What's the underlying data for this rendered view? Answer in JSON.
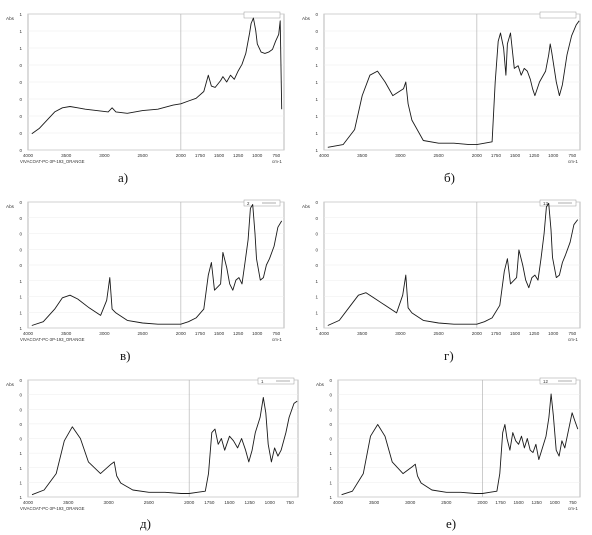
{
  "chart_data": [
    {
      "type": "line",
      "panel_label": "а)",
      "ylabel": "Abs",
      "x_unit": "cm-1",
      "file_label": "VIVACOAT-PC-3P-193_ORANGE",
      "legend": "",
      "xlim": [
        4000,
        650
      ],
      "ylim": [
        0,
        1
      ],
      "xticks": [
        4000,
        3500,
        3000,
        2500,
        2000,
        1750,
        1500,
        1250,
        1000,
        750
      ],
      "yticks": [
        "0",
        "0",
        "0",
        "0",
        "0",
        "0",
        "1",
        "1",
        "1"
      ],
      "x": [
        3950,
        3850,
        3750,
        3650,
        3550,
        3450,
        3350,
        3250,
        3100,
        2950,
        2900,
        2850,
        2700,
        2500,
        2300,
        2100,
        2000,
        1900,
        1800,
        1700,
        1640,
        1600,
        1550,
        1480,
        1450,
        1400,
        1350,
        1300,
        1250,
        1200,
        1150,
        1100,
        1080,
        1050,
        1020,
        1000,
        950,
        900,
        850,
        800,
        760,
        720,
        700,
        680
      ],
      "y": [
        0.12,
        0.16,
        0.22,
        0.28,
        0.31,
        0.32,
        0.31,
        0.3,
        0.29,
        0.28,
        0.31,
        0.28,
        0.27,
        0.29,
        0.3,
        0.33,
        0.34,
        0.36,
        0.38,
        0.43,
        0.55,
        0.47,
        0.46,
        0.51,
        0.54,
        0.5,
        0.55,
        0.52,
        0.58,
        0.63,
        0.71,
        0.86,
        0.93,
        0.97,
        0.88,
        0.78,
        0.72,
        0.71,
        0.72,
        0.74,
        0.8,
        0.85,
        0.95,
        0.3
      ]
    },
    {
      "type": "line",
      "panel_label": "б)",
      "ylabel": "Abs",
      "x_unit": "cm-1",
      "file_label": "",
      "legend": "",
      "xlim": [
        4000,
        650
      ],
      "ylim": [
        0,
        1
      ],
      "xticks": [
        4000,
        3500,
        3000,
        2500,
        2000,
        1750,
        1500,
        1250,
        1000,
        750
      ],
      "yticks": [
        "1",
        "1",
        "1",
        "1",
        "1",
        "1",
        "0",
        "0",
        "0"
      ],
      "x": [
        3950,
        3750,
        3600,
        3500,
        3400,
        3300,
        3200,
        3100,
        2960,
        2930,
        2900,
        2850,
        2700,
        2500,
        2300,
        2100,
        2000,
        1900,
        1800,
        1760,
        1720,
        1690,
        1650,
        1620,
        1600,
        1560,
        1510,
        1460,
        1420,
        1380,
        1340,
        1300,
        1270,
        1240,
        1180,
        1100,
        1060,
        1040,
        1020,
        960,
        920,
        880,
        820,
        760,
        700,
        660
      ],
      "y": [
        0.02,
        0.04,
        0.15,
        0.4,
        0.55,
        0.58,
        0.5,
        0.4,
        0.45,
        0.5,
        0.34,
        0.22,
        0.07,
        0.05,
        0.05,
        0.04,
        0.04,
        0.05,
        0.06,
        0.5,
        0.8,
        0.86,
        0.75,
        0.55,
        0.78,
        0.86,
        0.6,
        0.62,
        0.55,
        0.6,
        0.58,
        0.52,
        0.45,
        0.4,
        0.5,
        0.58,
        0.7,
        0.78,
        0.72,
        0.5,
        0.4,
        0.48,
        0.7,
        0.84,
        0.92,
        0.95
      ]
    },
    {
      "type": "line",
      "panel_label": "в)",
      "ylabel": "Abs",
      "x_unit": "cm-1",
      "file_label": "VIVACOAT-PC-3P-193_ORANGE",
      "legend": "2",
      "xlim": [
        4000,
        650
      ],
      "ylim": [
        0,
        1
      ],
      "xticks": [
        4000,
        3500,
        3000,
        2500,
        2000,
        1750,
        1500,
        1250,
        1000,
        750
      ],
      "yticks": [
        "1",
        "1",
        "1",
        "1",
        "0",
        "0",
        "0",
        "0",
        "0"
      ],
      "x": [
        3950,
        3800,
        3650,
        3550,
        3450,
        3350,
        3200,
        3050,
        2970,
        2930,
        2900,
        2850,
        2700,
        2500,
        2300,
        2100,
        2000,
        1900,
        1800,
        1700,
        1640,
        1600,
        1560,
        1480,
        1450,
        1400,
        1360,
        1320,
        1280,
        1240,
        1200,
        1160,
        1120,
        1090,
        1060,
        1030,
        1010,
        960,
        920,
        880,
        840,
        780,
        730,
        680
      ],
      "y": [
        0.02,
        0.05,
        0.15,
        0.24,
        0.26,
        0.23,
        0.16,
        0.1,
        0.22,
        0.4,
        0.15,
        0.12,
        0.06,
        0.04,
        0.03,
        0.03,
        0.03,
        0.05,
        0.08,
        0.15,
        0.42,
        0.52,
        0.3,
        0.35,
        0.6,
        0.48,
        0.35,
        0.3,
        0.38,
        0.4,
        0.35,
        0.52,
        0.7,
        0.95,
        0.98,
        0.75,
        0.55,
        0.38,
        0.4,
        0.5,
        0.55,
        0.65,
        0.8,
        0.85
      ]
    },
    {
      "type": "line",
      "panel_label": "г)",
      "ylabel": "Abs",
      "x_unit": "cm-1",
      "file_label": "",
      "legend": "13",
      "xlim": [
        4000,
        650
      ],
      "ylim": [
        0,
        1
      ],
      "xticks": [
        4000,
        3500,
        3000,
        2500,
        2000,
        1750,
        1500,
        1250,
        1000,
        750
      ],
      "yticks": [
        "1",
        "1",
        "1",
        "1",
        "0",
        "0",
        "0",
        "0",
        "0"
      ],
      "x": [
        3950,
        3800,
        3650,
        3550,
        3450,
        3350,
        3200,
        3050,
        2970,
        2930,
        2900,
        2850,
        2700,
        2500,
        2300,
        2100,
        2000,
        1900,
        1800,
        1700,
        1640,
        1600,
        1560,
        1480,
        1450,
        1400,
        1360,
        1320,
        1280,
        1240,
        1200,
        1160,
        1120,
        1090,
        1060,
        1030,
        1010,
        960,
        920,
        880,
        840,
        780,
        730,
        680
      ],
      "y": [
        0.02,
        0.06,
        0.18,
        0.26,
        0.28,
        0.24,
        0.18,
        0.12,
        0.26,
        0.42,
        0.16,
        0.12,
        0.06,
        0.04,
        0.03,
        0.03,
        0.03,
        0.05,
        0.08,
        0.18,
        0.45,
        0.55,
        0.35,
        0.4,
        0.62,
        0.5,
        0.38,
        0.32,
        0.4,
        0.42,
        0.38,
        0.55,
        0.75,
        0.96,
        0.99,
        0.78,
        0.56,
        0.4,
        0.42,
        0.52,
        0.58,
        0.68,
        0.82,
        0.86
      ]
    },
    {
      "type": "line",
      "panel_label": "д)",
      "ylabel": "Abs",
      "x_unit": "",
      "file_label": "VIVACOAT-PC-3P-193_ORANGE",
      "legend": "1",
      "xlim": [
        4000,
        650
      ],
      "ylim": [
        0,
        1
      ],
      "xticks": [
        4000,
        3500,
        3000,
        2500,
        2000,
        1750,
        1500,
        1250,
        1000,
        750
      ],
      "yticks": [
        "1",
        "1",
        "1",
        "1",
        "0",
        "0",
        "0",
        "0",
        "0"
      ],
      "x": [
        3950,
        3800,
        3650,
        3550,
        3450,
        3350,
        3250,
        3100,
        2970,
        2930,
        2900,
        2850,
        2700,
        2500,
        2300,
        2100,
        2000,
        1900,
        1800,
        1760,
        1720,
        1680,
        1640,
        1600,
        1560,
        1500,
        1450,
        1400,
        1350,
        1300,
        1260,
        1220,
        1180,
        1120,
        1080,
        1050,
        1020,
        980,
        940,
        900,
        860,
        800,
        760,
        700,
        660
      ],
      "y": [
        0.02,
        0.06,
        0.2,
        0.48,
        0.6,
        0.5,
        0.3,
        0.2,
        0.28,
        0.3,
        0.18,
        0.12,
        0.06,
        0.04,
        0.04,
        0.03,
        0.03,
        0.04,
        0.05,
        0.2,
        0.55,
        0.58,
        0.45,
        0.5,
        0.4,
        0.52,
        0.48,
        0.42,
        0.5,
        0.4,
        0.3,
        0.4,
        0.55,
        0.68,
        0.85,
        0.72,
        0.45,
        0.3,
        0.42,
        0.35,
        0.4,
        0.55,
        0.68,
        0.8,
        0.82
      ]
    },
    {
      "type": "line",
      "panel_label": "е)",
      "ylabel": "Abs",
      "x_unit": "cm-1",
      "file_label": "",
      "legend": "12",
      "xlim": [
        4000,
        650
      ],
      "ylim": [
        0,
        1
      ],
      "xticks": [
        4000,
        3500,
        3000,
        2500,
        2000,
        1750,
        1500,
        1250,
        1000,
        750
      ],
      "yticks": [
        "1",
        "1",
        "1",
        "1",
        "0",
        "0",
        "0",
        "0",
        "0"
      ],
      "x": [
        3950,
        3800,
        3650,
        3550,
        3450,
        3350,
        3250,
        3100,
        2970,
        2930,
        2900,
        2850,
        2700,
        2500,
        2300,
        2100,
        2000,
        1900,
        1800,
        1760,
        1720,
        1690,
        1660,
        1620,
        1580,
        1540,
        1500,
        1460,
        1420,
        1380,
        1340,
        1300,
        1260,
        1220,
        1180,
        1120,
        1080,
        1050,
        1020,
        980,
        940,
        900,
        860,
        800,
        760,
        720,
        680
      ],
      "y": [
        0.02,
        0.05,
        0.2,
        0.52,
        0.62,
        0.52,
        0.3,
        0.2,
        0.26,
        0.28,
        0.18,
        0.12,
        0.06,
        0.04,
        0.04,
        0.03,
        0.03,
        0.04,
        0.05,
        0.2,
        0.55,
        0.62,
        0.5,
        0.4,
        0.55,
        0.48,
        0.45,
        0.52,
        0.42,
        0.5,
        0.4,
        0.38,
        0.45,
        0.32,
        0.4,
        0.52,
        0.68,
        0.88,
        0.7,
        0.4,
        0.35,
        0.48,
        0.42,
        0.6,
        0.72,
        0.65,
        0.58
      ]
    }
  ]
}
